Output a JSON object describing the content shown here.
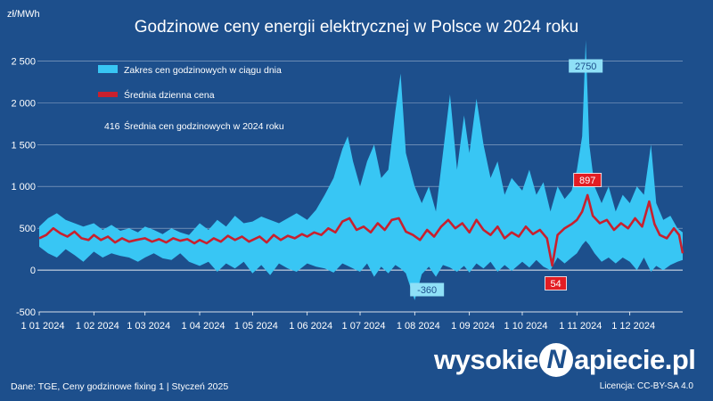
{
  "title": "Godzinowe ceny energii elektrycznej w Polsce w 2024 roku",
  "unit_label": "zł/MWh",
  "footer": {
    "source": "Dane: TGE, Ceny godzinowe fixing 1   |   Styczeń 2025",
    "license": "Licencja: CC-BY-SA 4.0"
  },
  "logo": {
    "left": "wysokie",
    "mark": "N",
    "right": "apiecie.pl"
  },
  "colors": {
    "background": "#1d4f8c",
    "range_fill": "#38c6f4",
    "average_line": "#c8202e",
    "grid": "#ffffff",
    "callout_red": "#e31d23"
  },
  "chart_data": {
    "type": "area",
    "ylim": [
      -500,
      2750
    ],
    "yticks": [
      2500,
      2000,
      1500,
      1000,
      500,
      0,
      -500
    ],
    "ytick_labels": [
      "2 500",
      "2 000",
      "1 500",
      "1 000",
      "500",
      "0",
      "-500"
    ],
    "x_tick_labels": [
      "1 01 2024",
      "1 02 2024",
      "1 03 2024",
      "1 04 2024",
      "1 05 2024",
      "1 06 2024",
      "1 07 2024",
      "1 08 2024",
      "1 09 2024",
      "1 10 2024",
      "1 11 2024",
      "1 12 2024"
    ],
    "x_tick_days": [
      0,
      31,
      60,
      91,
      121,
      152,
      182,
      213,
      244,
      274,
      305,
      335
    ],
    "x_range_days": [
      0,
      365
    ],
    "grid": true,
    "legend": [
      {
        "label": "Zakres cen godzinowych w ciągu dnia",
        "marker": "range"
      },
      {
        "label": "Średnia dzienna cena",
        "marker": "line"
      },
      {
        "label": "Średnia cen godzinowych w 2024 roku",
        "value": "416"
      }
    ],
    "annotations": [
      {
        "label": "2750",
        "date": "2024-11-06",
        "value": 2750,
        "style": "light"
      },
      {
        "label": "897",
        "date": "2024-11-07",
        "value": 897,
        "style": "red"
      },
      {
        "label": "-360",
        "date": "2024-08-08",
        "value": -360,
        "style": "light"
      },
      {
        "label": "54",
        "date": "2024-10-20",
        "value": 54,
        "style": "red"
      }
    ],
    "series": [
      {
        "name": "Zakres cen godzinowych w ciągu dnia",
        "kind": "range",
        "points": [
          {
            "day": 0,
            "low": 280,
            "high": 520
          },
          {
            "day": 5,
            "low": 200,
            "high": 620
          },
          {
            "day": 10,
            "low": 150,
            "high": 680
          },
          {
            "day": 15,
            "low": 250,
            "high": 600
          },
          {
            "day": 20,
            "low": 180,
            "high": 560
          },
          {
            "day": 25,
            "low": 100,
            "high": 520
          },
          {
            "day": 31,
            "low": 220,
            "high": 560
          },
          {
            "day": 36,
            "low": 150,
            "high": 480
          },
          {
            "day": 41,
            "low": 200,
            "high": 540
          },
          {
            "day": 46,
            "low": 170,
            "high": 470
          },
          {
            "day": 51,
            "low": 150,
            "high": 500
          },
          {
            "day": 56,
            "low": 100,
            "high": 450
          },
          {
            "day": 60,
            "low": 150,
            "high": 520
          },
          {
            "day": 65,
            "low": 200,
            "high": 480
          },
          {
            "day": 70,
            "low": 140,
            "high": 430
          },
          {
            "day": 75,
            "low": 120,
            "high": 500
          },
          {
            "day": 80,
            "low": 200,
            "high": 450
          },
          {
            "day": 85,
            "low": 100,
            "high": 420
          },
          {
            "day": 91,
            "low": 50,
            "high": 560
          },
          {
            "day": 96,
            "low": 100,
            "high": 480
          },
          {
            "day": 101,
            "low": -20,
            "high": 600
          },
          {
            "day": 106,
            "low": 80,
            "high": 520
          },
          {
            "day": 111,
            "low": 20,
            "high": 650
          },
          {
            "day": 116,
            "low": 100,
            "high": 560
          },
          {
            "day": 121,
            "low": -40,
            "high": 580
          },
          {
            "day": 126,
            "low": 60,
            "high": 640
          },
          {
            "day": 131,
            "low": -60,
            "high": 600
          },
          {
            "day": 136,
            "low": 80,
            "high": 560
          },
          {
            "day": 141,
            "low": 20,
            "high": 620
          },
          {
            "day": 146,
            "low": -20,
            "high": 680
          },
          {
            "day": 152,
            "low": 80,
            "high": 600
          },
          {
            "day": 157,
            "low": 40,
            "high": 720
          },
          {
            "day": 162,
            "low": 20,
            "high": 900
          },
          {
            "day": 167,
            "low": -30,
            "high": 1100
          },
          {
            "day": 172,
            "low": 80,
            "high": 1450
          },
          {
            "day": 175,
            "low": 50,
            "high": 1600
          },
          {
            "day": 178,
            "low": 20,
            "high": 1300
          },
          {
            "day": 182,
            "low": -20,
            "high": 1000
          },
          {
            "day": 186,
            "low": 80,
            "high": 1300
          },
          {
            "day": 190,
            "low": -80,
            "high": 1500
          },
          {
            "day": 194,
            "low": 40,
            "high": 1100
          },
          {
            "day": 198,
            "low": -40,
            "high": 1200
          },
          {
            "day": 202,
            "low": 60,
            "high": 1900
          },
          {
            "day": 205,
            "low": 20,
            "high": 2350
          },
          {
            "day": 208,
            "low": -40,
            "high": 1400
          },
          {
            "day": 213,
            "low": -360,
            "high": 1000
          },
          {
            "day": 217,
            "low": -50,
            "high": 800
          },
          {
            "day": 221,
            "low": 40,
            "high": 1000
          },
          {
            "day": 225,
            "low": -80,
            "high": 700
          },
          {
            "day": 229,
            "low": 60,
            "high": 1400
          },
          {
            "day": 233,
            "low": 30,
            "high": 2100
          },
          {
            "day": 237,
            "low": -20,
            "high": 1200
          },
          {
            "day": 241,
            "low": 50,
            "high": 1850
          },
          {
            "day": 244,
            "low": -30,
            "high": 1400
          },
          {
            "day": 248,
            "low": 80,
            "high": 2050
          },
          {
            "day": 252,
            "low": 20,
            "high": 1500
          },
          {
            "day": 256,
            "low": 100,
            "high": 1100
          },
          {
            "day": 260,
            "low": -20,
            "high": 1300
          },
          {
            "day": 264,
            "low": 60,
            "high": 900
          },
          {
            "day": 268,
            "low": -10,
            "high": 1100
          },
          {
            "day": 274,
            "low": 100,
            "high": 950
          },
          {
            "day": 278,
            "low": 30,
            "high": 1200
          },
          {
            "day": 282,
            "low": 120,
            "high": 900
          },
          {
            "day": 286,
            "low": 40,
            "high": 1050
          },
          {
            "day": 290,
            "low": 0,
            "high": 700
          },
          {
            "day": 294,
            "low": 150,
            "high": 1000
          },
          {
            "day": 298,
            "low": 80,
            "high": 850
          },
          {
            "day": 302,
            "low": 150,
            "high": 950
          },
          {
            "day": 305,
            "low": 200,
            "high": 1200
          },
          {
            "day": 308,
            "low": 300,
            "high": 1600
          },
          {
            "day": 310,
            "low": 350,
            "high": 2750
          },
          {
            "day": 312,
            "low": 300,
            "high": 1500
          },
          {
            "day": 315,
            "low": 200,
            "high": 1000
          },
          {
            "day": 319,
            "low": 100,
            "high": 800
          },
          {
            "day": 323,
            "low": 150,
            "high": 1000
          },
          {
            "day": 327,
            "low": 80,
            "high": 700
          },
          {
            "day": 331,
            "low": 150,
            "high": 900
          },
          {
            "day": 335,
            "low": 100,
            "high": 800
          },
          {
            "day": 339,
            "low": 0,
            "high": 1000
          },
          {
            "day": 343,
            "low": 150,
            "high": 900
          },
          {
            "day": 347,
            "low": -20,
            "high": 1500
          },
          {
            "day": 350,
            "low": 50,
            "high": 800
          },
          {
            "day": 354,
            "low": 0,
            "high": 600
          },
          {
            "day": 358,
            "low": 60,
            "high": 650
          },
          {
            "day": 362,
            "low": 100,
            "high": 500
          },
          {
            "day": 365,
            "low": 120,
            "high": 450
          }
        ]
      },
      {
        "name": "Średnia dzienna cena",
        "kind": "line",
        "points": [
          {
            "day": 0,
            "value": 380
          },
          {
            "day": 4,
            "value": 420
          },
          {
            "day": 8,
            "value": 500
          },
          {
            "day": 12,
            "value": 440
          },
          {
            "day": 16,
            "value": 400
          },
          {
            "day": 20,
            "value": 460
          },
          {
            "day": 24,
            "value": 380
          },
          {
            "day": 28,
            "value": 360
          },
          {
            "day": 31,
            "value": 420
          },
          {
            "day": 35,
            "value": 360
          },
          {
            "day": 39,
            "value": 400
          },
          {
            "day": 43,
            "value": 330
          },
          {
            "day": 47,
            "value": 380
          },
          {
            "day": 51,
            "value": 340
          },
          {
            "day": 55,
            "value": 360
          },
          {
            "day": 60,
            "value": 380
          },
          {
            "day": 64,
            "value": 340
          },
          {
            "day": 68,
            "value": 370
          },
          {
            "day": 72,
            "value": 330
          },
          {
            "day": 76,
            "value": 380
          },
          {
            "day": 80,
            "value": 350
          },
          {
            "day": 84,
            "value": 370
          },
          {
            "day": 88,
            "value": 320
          },
          {
            "day": 91,
            "value": 360
          },
          {
            "day": 95,
            "value": 320
          },
          {
            "day": 99,
            "value": 380
          },
          {
            "day": 103,
            "value": 340
          },
          {
            "day": 107,
            "value": 410
          },
          {
            "day": 111,
            "value": 360
          },
          {
            "day": 115,
            "value": 400
          },
          {
            "day": 119,
            "value": 340
          },
          {
            "day": 121,
            "value": 360
          },
          {
            "day": 125,
            "value": 400
          },
          {
            "day": 129,
            "value": 330
          },
          {
            "day": 133,
            "value": 420
          },
          {
            "day": 137,
            "value": 360
          },
          {
            "day": 141,
            "value": 410
          },
          {
            "day": 145,
            "value": 380
          },
          {
            "day": 149,
            "value": 430
          },
          {
            "day": 152,
            "value": 400
          },
          {
            "day": 156,
            "value": 450
          },
          {
            "day": 160,
            "value": 420
          },
          {
            "day": 164,
            "value": 500
          },
          {
            "day": 168,
            "value": 450
          },
          {
            "day": 172,
            "value": 580
          },
          {
            "day": 176,
            "value": 620
          },
          {
            "day": 180,
            "value": 480
          },
          {
            "day": 184,
            "value": 520
          },
          {
            "day": 188,
            "value": 450
          },
          {
            "day": 192,
            "value": 560
          },
          {
            "day": 196,
            "value": 480
          },
          {
            "day": 200,
            "value": 600
          },
          {
            "day": 204,
            "value": 620
          },
          {
            "day": 208,
            "value": 460
          },
          {
            "day": 212,
            "value": 420
          },
          {
            "day": 216,
            "value": 360
          },
          {
            "day": 220,
            "value": 480
          },
          {
            "day": 224,
            "value": 400
          },
          {
            "day": 228,
            "value": 520
          },
          {
            "day": 232,
            "value": 600
          },
          {
            "day": 236,
            "value": 500
          },
          {
            "day": 240,
            "value": 560
          },
          {
            "day": 244,
            "value": 450
          },
          {
            "day": 248,
            "value": 600
          },
          {
            "day": 252,
            "value": 480
          },
          {
            "day": 256,
            "value": 420
          },
          {
            "day": 260,
            "value": 520
          },
          {
            "day": 264,
            "value": 380
          },
          {
            "day": 268,
            "value": 450
          },
          {
            "day": 272,
            "value": 400
          },
          {
            "day": 276,
            "value": 520
          },
          {
            "day": 280,
            "value": 430
          },
          {
            "day": 284,
            "value": 480
          },
          {
            "day": 288,
            "value": 380
          },
          {
            "day": 291,
            "value": 54
          },
          {
            "day": 294,
            "value": 420
          },
          {
            "day": 298,
            "value": 500
          },
          {
            "day": 302,
            "value": 550
          },
          {
            "day": 305,
            "value": 600
          },
          {
            "day": 308,
            "value": 700
          },
          {
            "day": 311,
            "value": 897
          },
          {
            "day": 314,
            "value": 650
          },
          {
            "day": 318,
            "value": 560
          },
          {
            "day": 322,
            "value": 600
          },
          {
            "day": 326,
            "value": 480
          },
          {
            "day": 330,
            "value": 560
          },
          {
            "day": 334,
            "value": 500
          },
          {
            "day": 338,
            "value": 620
          },
          {
            "day": 342,
            "value": 520
          },
          {
            "day": 346,
            "value": 820
          },
          {
            "day": 349,
            "value": 550
          },
          {
            "day": 352,
            "value": 420
          },
          {
            "day": 356,
            "value": 380
          },
          {
            "day": 360,
            "value": 500
          },
          {
            "day": 363,
            "value": 420
          },
          {
            "day": 365,
            "value": 200
          }
        ]
      }
    ]
  }
}
